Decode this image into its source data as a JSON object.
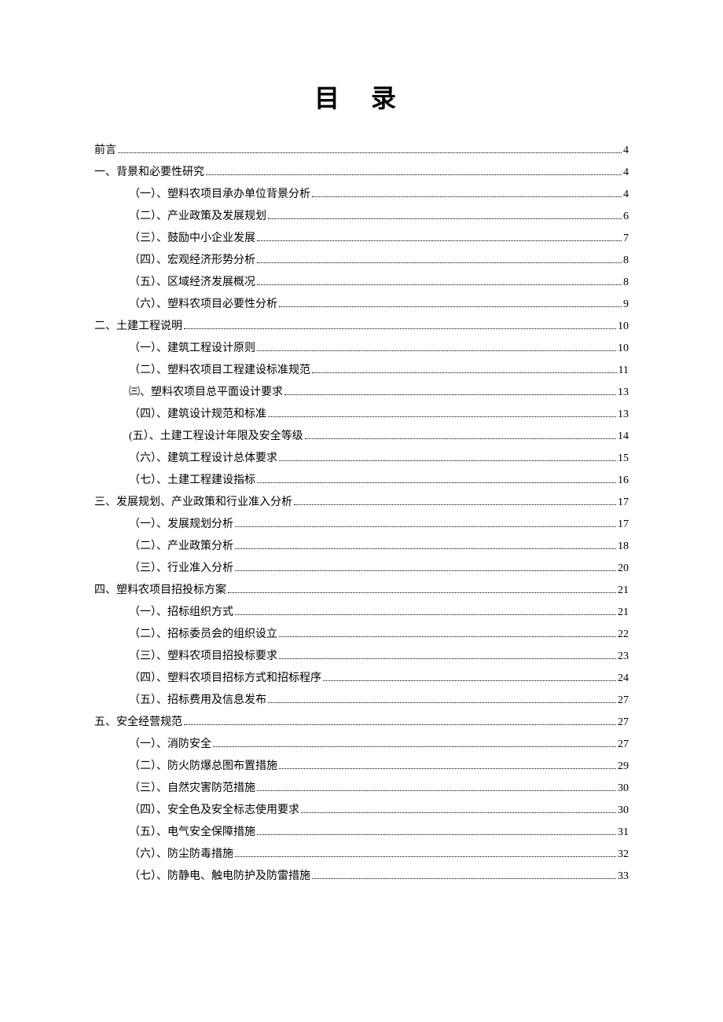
{
  "title": "目 录",
  "entries": [
    {
      "level": 0,
      "label": "前言",
      "page": "4"
    },
    {
      "level": 0,
      "label": "一、背景和必要性研究",
      "page": "4"
    },
    {
      "level": 1,
      "label": "（一）、塑料农项目承办单位背景分析",
      "page": "4"
    },
    {
      "level": 1,
      "label": "（二）、产业政策及发展规划",
      "page": "6"
    },
    {
      "level": 1,
      "label": "（三）、鼓励中小企业发展",
      "page": "7"
    },
    {
      "level": 1,
      "label": "（四）、宏观经济形势分析",
      "page": "8"
    },
    {
      "level": 1,
      "label": "（五）、区域经济发展概况",
      "page": "8"
    },
    {
      "level": 1,
      "label": "（六）、塑料农项目必要性分析",
      "page": "9"
    },
    {
      "level": 0,
      "label": "二、土建工程说明",
      "page": "10"
    },
    {
      "level": 1,
      "label": "（一）、建筑工程设计原则",
      "page": "10"
    },
    {
      "level": 1,
      "label": "（二）、塑料农项目工程建设标准规范",
      "page": "11"
    },
    {
      "level": 1,
      "label": "㈢、塑料农项目总平面设计要求",
      "page": "13"
    },
    {
      "level": 1,
      "label": "（四）、建筑设计规范和标准",
      "page": "13"
    },
    {
      "level": 1,
      "label": " (五）、土建工程设计年限及安全等级",
      "page": "14"
    },
    {
      "level": 1,
      "label": "（六）、建筑工程设计总体要求",
      "page": "15"
    },
    {
      "level": 1,
      "label": "（七）、土建工程建设指标",
      "page": "16"
    },
    {
      "level": 0,
      "label": "三、发展规划、产业政策和行业准入分析",
      "page": "17"
    },
    {
      "level": 1,
      "label": "（一）、发展规划分析",
      "page": "17"
    },
    {
      "level": 1,
      "label": "（二）、产业政策分析",
      "page": "18"
    },
    {
      "level": 1,
      "label": "（三）、行业准入分析",
      "page": "20"
    },
    {
      "level": 0,
      "label": "四、塑料农项目招投标方案",
      "page": "21"
    },
    {
      "level": 1,
      "label": "（一）、招标组织方式",
      "page": "21"
    },
    {
      "level": 1,
      "label": "（二）、招标委员会的组织设立",
      "page": "22"
    },
    {
      "level": 1,
      "label": "（三）、塑料农项目招投标要求",
      "page": "23"
    },
    {
      "level": 1,
      "label": "（四）、塑料农项目招标方式和招标程序",
      "page": "24"
    },
    {
      "level": 1,
      "label": "（五）、招标费用及信息发布",
      "page": "27"
    },
    {
      "level": 0,
      "label": "五、安全经营规范",
      "page": "27"
    },
    {
      "level": 1,
      "label": "（一）、消防安全",
      "page": "27"
    },
    {
      "level": 1,
      "label": "（二）、防火防爆总图布置措施",
      "page": "29"
    },
    {
      "level": 1,
      "label": "（三）、自然灾害防范措施",
      "page": "30"
    },
    {
      "level": 1,
      "label": "（四）、安全色及安全标志使用要求",
      "page": "30"
    },
    {
      "level": 1,
      "label": "（五）、电气安全保障措施",
      "page": "31"
    },
    {
      "level": 1,
      "label": "（六）、防尘防毒措施",
      "page": "32"
    },
    {
      "level": 1,
      "label": "（七）、防静电、触电防护及防雷措施",
      "page": "33"
    }
  ]
}
